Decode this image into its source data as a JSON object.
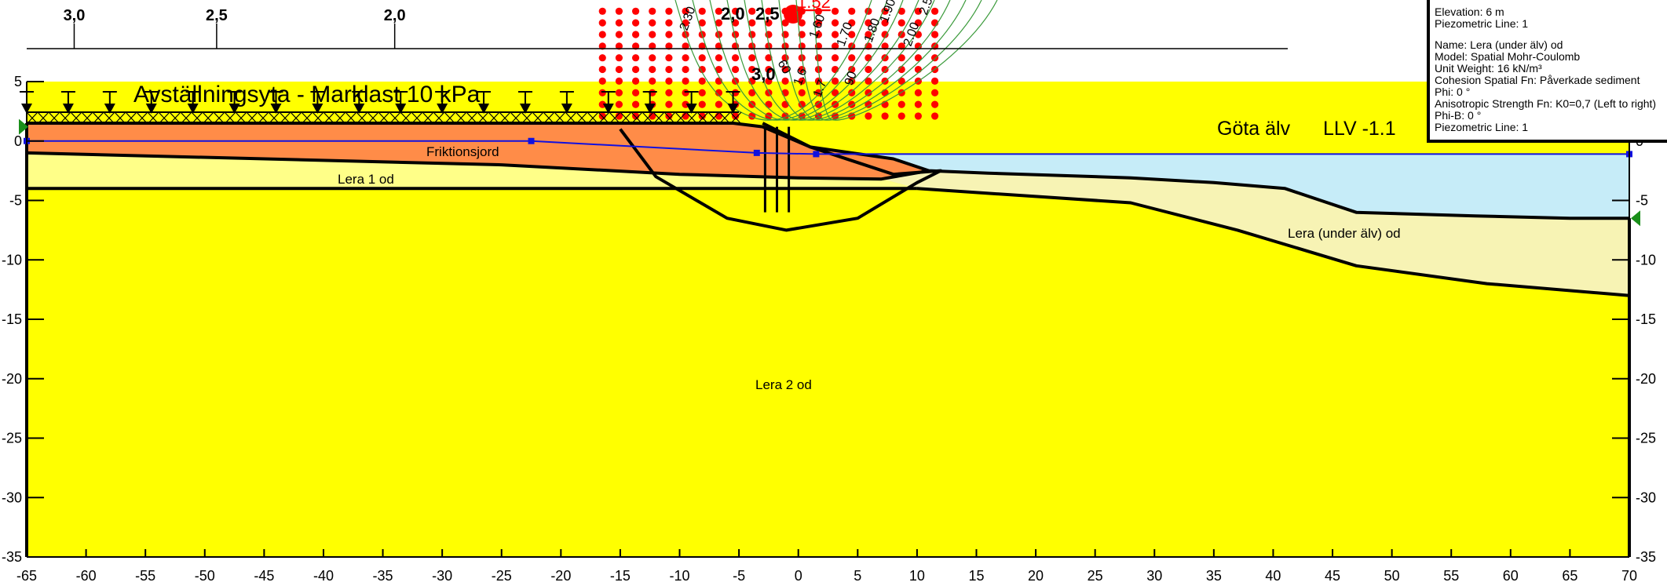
{
  "top_scale": {
    "labels": [
      "3,0",
      "2,5",
      "2,0"
    ],
    "x_positions": [
      -61.0,
      -49.0,
      -34.0
    ]
  },
  "load": {
    "title": "Avställningsyta - Marklast 10 kPa",
    "x_from": -65,
    "x_to": -5,
    "arrow_xs": [
      -65,
      -61.5,
      -58,
      -54.5,
      -51,
      -47.5,
      -44,
      -40.5,
      -37,
      -33.5,
      -30,
      -26.5,
      -23,
      -19.5,
      -16,
      -12.5,
      -9,
      -5.5
    ]
  },
  "river": {
    "name": "Göta älv",
    "llv_label": "LLV -1.1",
    "water_level": -1.1
  },
  "materials": [
    {
      "name": "Friktionsjord",
      "color": "#ff8c48"
    },
    {
      "name": "Lera 1 od",
      "color": "#ffff88"
    },
    {
      "name": "Lera (under älv) od",
      "color": "#f7f3b4"
    },
    {
      "name": "Lera 2 od",
      "color": "#ffff00"
    }
  ],
  "water_color": "#c6ecf8",
  "slip_surface_fs": "1.52",
  "contour_labels": [
    "1.60",
    "1.70",
    "1.80",
    "1.90",
    "2.00",
    "2.20",
    "2.50",
    "2.30",
    "2,0",
    "2,5",
    "3,0",
    "60",
    "1.7",
    "1.6",
    "90"
  ],
  "legend": {
    "lines_top": [
      "Elevation: 6 m",
      "Piezometric Line: 1"
    ],
    "lines_bottom": [
      "Name: Lera (under älv) od",
      "Model: Spatial Mohr-Coulomb",
      "Unit Weight: 16 kN/m³",
      "Cohesion Spatial Fn: Påverkade sediment",
      "Phi: 0 °",
      "Anisotropic Strength Fn: K0=0,7 (Left to right)",
      "Phi-B: 0 °",
      "Piezometric Line: 1"
    ]
  },
  "chart_data": {
    "type": "diagram",
    "x_axis": {
      "min": -65,
      "max": 70,
      "ticks": [
        -65,
        -60,
        -55,
        -50,
        -45,
        -40,
        -35,
        -30,
        -25,
        -20,
        -15,
        -10,
        -5,
        0,
        5,
        10,
        15,
        20,
        25,
        30,
        35,
        40,
        45,
        50,
        55,
        60,
        65,
        70
      ]
    },
    "y_axis": {
      "min": -35,
      "max": 5,
      "ticks": [
        -35,
        -30,
        -25,
        -20,
        -15,
        -10,
        -5,
        0,
        5
      ]
    },
    "geometry": {
      "ground_surface": [
        [
          -65,
          1.5
        ],
        [
          -5.5,
          1.5
        ],
        [
          -3,
          1.2
        ],
        [
          1,
          -0.5
        ],
        [
          8,
          -1.5
        ],
        [
          11,
          -2.5
        ],
        [
          16,
          -2.7
        ],
        [
          28,
          -3.1
        ],
        [
          35,
          -3.5
        ],
        [
          41,
          -4
        ],
        [
          47,
          -6
        ],
        [
          57,
          -6.3
        ],
        [
          65,
          -6.5
        ],
        [
          70,
          -6.5
        ]
      ],
      "friktionsjord_base": [
        [
          -65,
          -1
        ],
        [
          -25,
          -2
        ],
        [
          -10,
          -2.8
        ],
        [
          0,
          -3.1
        ],
        [
          7,
          -3.2
        ],
        [
          11,
          -2.5
        ]
      ],
      "lera1_base": [
        [
          -65,
          -4
        ],
        [
          -5,
          -4
        ],
        [
          10,
          -4
        ],
        [
          28,
          -5.2
        ],
        [
          37,
          -7.5
        ],
        [
          47,
          -10.5
        ],
        [
          58,
          -12
        ],
        [
          70,
          -13
        ]
      ],
      "lera_under_alv_base": [
        [
          10,
          -4
        ],
        [
          28,
          -5.2
        ],
        [
          37,
          -7.5
        ],
        [
          47,
          -10.5
        ],
        [
          58,
          -12
        ],
        [
          70,
          -13
        ]
      ],
      "piezometric_line": [
        [
          -65,
          0
        ],
        [
          -22.5,
          0
        ],
        [
          -3.5,
          -1
        ],
        [
          1.5,
          -1.1
        ],
        [
          70,
          -1.1
        ]
      ],
      "slip_surface": [
        [
          -15,
          1
        ],
        [
          -12,
          -3
        ],
        [
          -6,
          -6.5
        ],
        [
          -1,
          -7.5
        ],
        [
          5,
          -6.5
        ],
        [
          10,
          -3.5
        ],
        [
          12,
          -2.5
        ],
        [
          8,
          -2.8
        ],
        [
          1,
          -0.5
        ],
        [
          -3,
          1.5
        ]
      ]
    },
    "grid_centers": {
      "x_min": -16.5,
      "x_max": 12.0,
      "y_min": 1.5,
      "y_max": 11.5,
      "spacing": 1.4
    }
  }
}
